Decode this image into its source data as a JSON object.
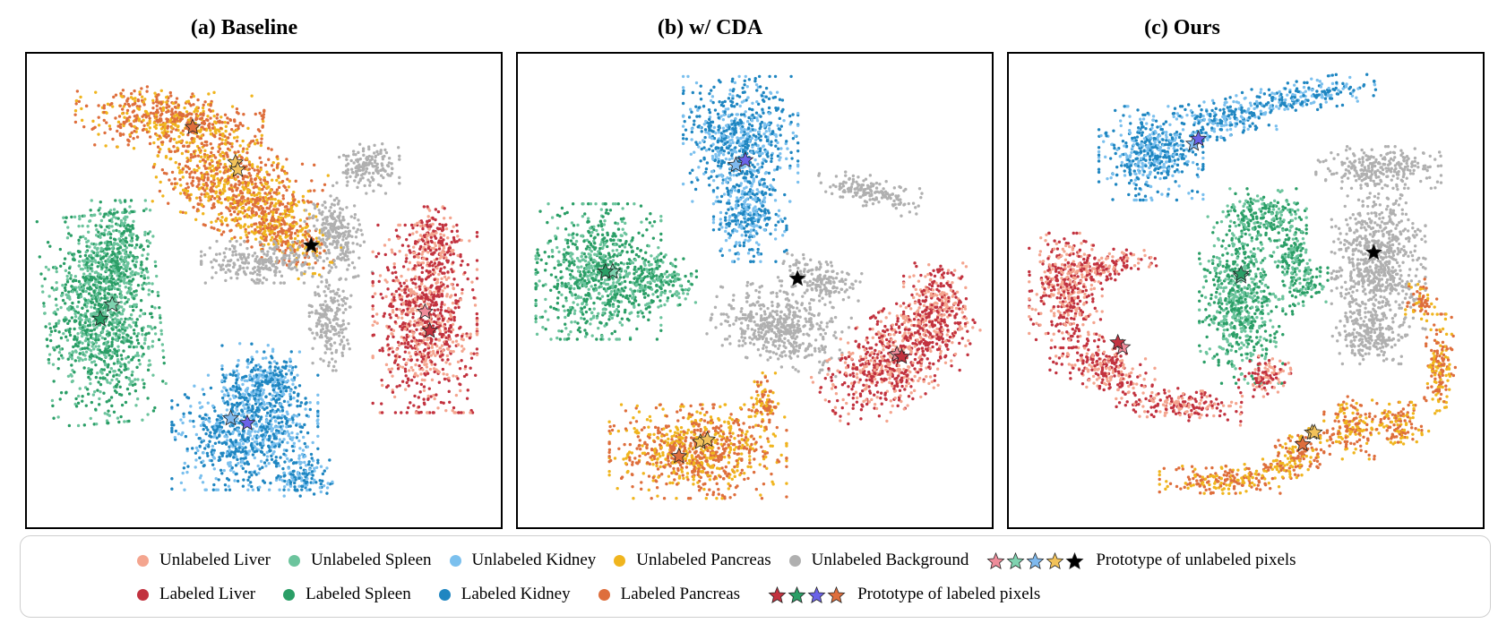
{
  "colors": {
    "unlabeled_liver": "#f4a58f",
    "unlabeled_spleen": "#6cc49d",
    "unlabeled_kidney": "#7bc0ee",
    "unlabeled_pancreas": "#f0b51e",
    "unlabeled_background": "#b0b0b0",
    "labeled_liver": "#c2323f",
    "labeled_spleen": "#2a9e66",
    "labeled_kidney": "#1f86c1",
    "labeled_pancreas": "#de6e3c",
    "proto_unlabeled": [
      "#ee8c9a",
      "#7fd3b0",
      "#7fb9ee",
      "#f2c25a",
      "#000000"
    ],
    "proto_labeled": [
      "#c2323f",
      "#2a9e66",
      "#6b62e8",
      "#de6e3c"
    ]
  },
  "chart_data": [
    {
      "type": "scatter",
      "title": "(a) Baseline",
      "xlabel": "",
      "ylabel": "",
      "xlim": [
        0,
        100
      ],
      "ylim": [
        0,
        100
      ],
      "clusters": [
        {
          "class": "pancreas",
          "labeled_color": "labeled_pancreas",
          "unlabeled_color": "unlabeled_pancreas",
          "blobs": [
            {
              "cx": 30,
              "cy": 86,
              "rx": 18,
              "ry": 6,
              "rot": -5
            },
            {
              "cx": 44,
              "cy": 72,
              "rx": 16,
              "ry": 9,
              "rot": -20
            },
            {
              "cx": 54,
              "cy": 62,
              "rx": 11,
              "ry": 6,
              "rot": -30
            }
          ]
        },
        {
          "class": "background",
          "labeled_color": "unlabeled_background",
          "unlabeled_color": "unlabeled_background",
          "blobs": [
            {
              "cx": 72,
              "cy": 76,
              "rx": 6,
              "ry": 5,
              "rot": 0
            },
            {
              "cx": 65,
              "cy": 62,
              "rx": 5,
              "ry": 9,
              "rot": 15
            },
            {
              "cx": 50,
              "cy": 56,
              "rx": 12,
              "ry": 4,
              "rot": 0
            },
            {
              "cx": 64,
              "cy": 43,
              "rx": 4,
              "ry": 9,
              "rot": 0
            }
          ]
        },
        {
          "class": "spleen",
          "labeled_color": "labeled_spleen",
          "unlabeled_color": "unlabeled_spleen",
          "blobs": [
            {
              "cx": 16,
              "cy": 44,
              "rx": 11,
              "ry": 20,
              "rot": 5
            },
            {
              "cx": 19,
              "cy": 58,
              "rx": 6,
              "ry": 10,
              "rot": 0
            }
          ]
        },
        {
          "class": "liver",
          "labeled_color": "labeled_liver",
          "unlabeled_color": "unlabeled_liver",
          "blobs": [
            {
              "cx": 84,
              "cy": 44,
              "rx": 10,
              "ry": 18,
              "rot": 0
            },
            {
              "cx": 86,
              "cy": 60,
              "rx": 5,
              "ry": 7,
              "rot": 0
            }
          ]
        },
        {
          "class": "kidney",
          "labeled_color": "labeled_kidney",
          "unlabeled_color": "unlabeled_kidney",
          "blobs": [
            {
              "cx": 46,
              "cy": 20,
              "rx": 14,
              "ry": 11,
              "rot": 0
            },
            {
              "cx": 50,
              "cy": 30,
              "rx": 8,
              "ry": 8,
              "rot": 0
            },
            {
              "cx": 58,
              "cy": 11,
              "rx": 6,
              "ry": 4,
              "rot": 0
            }
          ]
        }
      ],
      "prototypes": {
        "unlabeled": [
          {
            "class": "liver",
            "x": 84,
            "y": 45.5
          },
          {
            "class": "spleen",
            "x": 18,
            "y": 47
          },
          {
            "class": "kidney",
            "x": 43,
            "y": 23
          },
          {
            "class": "pancreas",
            "x": 44,
            "y": 77
          },
          {
            "class": "pancreas",
            "x": 44.5,
            "y": 75.5
          },
          {
            "class": "background",
            "x": 60,
            "y": 59.5
          }
        ],
        "labeled": [
          {
            "class": "liver",
            "x": 85,
            "y": 41.5
          },
          {
            "class": "spleen",
            "x": 15.5,
            "y": 44
          },
          {
            "class": "kidney",
            "x": 46.5,
            "y": 22
          },
          {
            "class": "pancreas",
            "x": 35,
            "y": 84.5
          }
        ]
      }
    },
    {
      "type": "scatter",
      "title": "(b) w/ CDA",
      "xlabel": "",
      "ylabel": "",
      "xlim": [
        0,
        100
      ],
      "ylim": [
        0,
        100
      ],
      "clusters": [
        {
          "class": "kidney",
          "labeled_color": "labeled_kidney",
          "unlabeled_color": "unlabeled_kidney",
          "blobs": [
            {
              "cx": 47,
              "cy": 82,
              "rx": 11,
              "ry": 12,
              "rot": 0
            },
            {
              "cx": 49,
              "cy": 66,
              "rx": 7,
              "ry": 9,
              "rot": 0
            }
          ]
        },
        {
          "class": "background",
          "labeled_color": "unlabeled_background",
          "unlabeled_color": "unlabeled_background",
          "blobs": [
            {
              "cx": 74,
              "cy": 71,
              "rx": 10,
              "ry": 3,
              "rot": -15
            },
            {
              "cx": 55,
              "cy": 42,
              "rx": 13,
              "ry": 7,
              "rot": -15
            },
            {
              "cx": 64,
              "cy": 52,
              "rx": 8,
              "ry": 4,
              "rot": -20
            }
          ]
        },
        {
          "class": "spleen",
          "labeled_color": "labeled_spleen",
          "unlabeled_color": "unlabeled_spleen",
          "blobs": [
            {
              "cx": 17,
              "cy": 54,
              "rx": 12,
              "ry": 13,
              "rot": 0
            },
            {
              "cx": 30,
              "cy": 52,
              "rx": 7,
              "ry": 5,
              "rot": 0
            }
          ]
        },
        {
          "class": "liver",
          "labeled_color": "labeled_liver",
          "unlabeled_color": "unlabeled_liver",
          "blobs": [
            {
              "cx": 80,
              "cy": 36,
              "rx": 16,
              "ry": 9,
              "rot": 35
            },
            {
              "cx": 88,
              "cy": 47,
              "rx": 6,
              "ry": 8,
              "rot": 0
            }
          ]
        },
        {
          "class": "pancreas",
          "labeled_color": "labeled_pancreas",
          "unlabeled_color": "unlabeled_pancreas",
          "blobs": [
            {
              "cx": 38,
              "cy": 16,
              "rx": 17,
              "ry": 9,
              "rot": 0
            },
            {
              "cx": 52,
              "cy": 26,
              "rx": 3,
              "ry": 6,
              "rot": 0
            }
          ]
        }
      ],
      "prototypes": {
        "unlabeled": [
          {
            "class": "liver",
            "x": 80,
            "y": 36.5
          },
          {
            "class": "spleen",
            "x": 20,
            "y": 54
          },
          {
            "class": "kidney",
            "x": 46,
            "y": 76.5
          },
          {
            "class": "pancreas",
            "x": 38.5,
            "y": 18
          },
          {
            "class": "pancreas",
            "x": 40,
            "y": 18.5
          },
          {
            "class": "background",
            "x": 59,
            "y": 52.5
          }
        ],
        "labeled": [
          {
            "class": "liver",
            "x": 81,
            "y": 36
          },
          {
            "class": "spleen",
            "x": 18.5,
            "y": 54
          },
          {
            "class": "kidney",
            "x": 48,
            "y": 77.5
          },
          {
            "class": "pancreas",
            "x": 34,
            "y": 15
          }
        ]
      }
    },
    {
      "type": "scatter",
      "title": "(c) Ours",
      "xlabel": "",
      "ylabel": "",
      "xlim": [
        0,
        100
      ],
      "ylim": [
        0,
        100
      ],
      "clusters": [
        {
          "class": "kidney",
          "labeled_color": "labeled_kidney",
          "unlabeled_color": "unlabeled_kidney",
          "blobs": [
            {
              "cx": 30,
              "cy": 79,
              "rx": 10,
              "ry": 9,
              "rot": 0
            },
            {
              "cx": 45,
              "cy": 86,
              "rx": 10,
              "ry": 4,
              "rot": 10
            },
            {
              "cx": 62,
              "cy": 91,
              "rx": 14,
              "ry": 3,
              "rot": 10
            }
          ]
        },
        {
          "class": "background",
          "labeled_color": "unlabeled_background",
          "unlabeled_color": "unlabeled_background",
          "blobs": [
            {
              "cx": 78,
              "cy": 56,
              "rx": 9,
              "ry": 15,
              "rot": 0
            },
            {
              "cx": 78,
              "cy": 76,
              "rx": 12,
              "ry": 4,
              "rot": 0
            },
            {
              "cx": 76,
              "cy": 40,
              "rx": 7,
              "ry": 5,
              "rot": 0
            }
          ]
        },
        {
          "class": "spleen",
          "labeled_color": "labeled_spleen",
          "unlabeled_color": "unlabeled_spleen",
          "blobs": [
            {
              "cx": 49,
              "cy": 48,
              "rx": 8,
              "ry": 16,
              "rot": 0
            },
            {
              "cx": 54,
              "cy": 66,
              "rx": 8,
              "ry": 5,
              "rot": 0
            },
            {
              "cx": 60,
              "cy": 56,
              "rx": 3,
              "ry": 10,
              "rot": 0
            },
            {
              "cx": 64,
              "cy": 52,
              "rx": 3,
              "ry": 4,
              "rot": 0
            }
          ]
        },
        {
          "class": "liver",
          "labeled_color": "labeled_liver",
          "unlabeled_color": "unlabeled_liver",
          "blobs": [
            {
              "cx": 12,
              "cy": 50,
              "rx": 7,
              "ry": 11,
              "rot": 0
            },
            {
              "cx": 20,
              "cy": 55,
              "rx": 10,
              "ry": 3,
              "rot": 10
            },
            {
              "cx": 20,
              "cy": 34,
              "rx": 10,
              "ry": 5,
              "rot": -25
            },
            {
              "cx": 36,
              "cy": 26,
              "rx": 12,
              "ry": 3,
              "rot": -5
            },
            {
              "cx": 54,
              "cy": 32,
              "rx": 5,
              "ry": 4,
              "rot": 0
            }
          ]
        },
        {
          "class": "pancreas",
          "labeled_color": "labeled_pancreas",
          "unlabeled_color": "unlabeled_pancreas",
          "blobs": [
            {
              "cx": 45,
              "cy": 10,
              "rx": 12,
              "ry": 3,
              "rot": 0
            },
            {
              "cx": 60,
              "cy": 15,
              "rx": 8,
              "ry": 4,
              "rot": 25
            },
            {
              "cx": 72,
              "cy": 21,
              "rx": 5,
              "ry": 6,
              "rot": 0
            },
            {
              "cx": 82,
              "cy": 22,
              "rx": 6,
              "ry": 4,
              "rot": 0
            },
            {
              "cx": 91,
              "cy": 34,
              "rx": 3,
              "ry": 10,
              "rot": 0
            },
            {
              "cx": 87,
              "cy": 48,
              "rx": 3,
              "ry": 4,
              "rot": 0
            }
          ]
        }
      ],
      "prototypes": {
        "unlabeled": [
          {
            "class": "liver",
            "x": 24,
            "y": 38
          },
          {
            "class": "spleen",
            "x": 49,
            "y": 53
          },
          {
            "class": "kidney",
            "x": 39,
            "y": 81
          },
          {
            "class": "pancreas",
            "x": 64,
            "y": 20
          },
          {
            "class": "pancreas",
            "x": 64.5,
            "y": 20
          },
          {
            "class": "background",
            "x": 77,
            "y": 58
          }
        ],
        "labeled": [
          {
            "class": "liver",
            "x": 23,
            "y": 39
          },
          {
            "class": "spleen",
            "x": 49,
            "y": 53.5
          },
          {
            "class": "kidney",
            "x": 40,
            "y": 82
          },
          {
            "class": "pancreas",
            "x": 62,
            "y": 17.5
          }
        ]
      }
    }
  ],
  "legend": {
    "row1": [
      {
        "label": "Unlabeled Liver",
        "color": "unlabeled_liver"
      },
      {
        "label": "Unlabeled Spleen",
        "color": "unlabeled_spleen"
      },
      {
        "label": "Unlabeled Kidney",
        "color": "unlabeled_kidney"
      },
      {
        "label": "Unlabeled Pancreas",
        "color": "unlabeled_pancreas"
      },
      {
        "label": "Unlabeled Background",
        "color": "unlabeled_background"
      }
    ],
    "row1_proto_label": "Prototype of unlabeled pixels",
    "row2": [
      {
        "label": "Labeled Liver",
        "color": "labeled_liver"
      },
      {
        "label": "Labeled Spleen",
        "color": "labeled_spleen"
      },
      {
        "label": "Labeled Kidney",
        "color": "labeled_kidney"
      },
      {
        "label": "Labeled Pancreas",
        "color": "labeled_pancreas"
      }
    ],
    "row2_proto_label": "Prototype of labeled pixels"
  }
}
